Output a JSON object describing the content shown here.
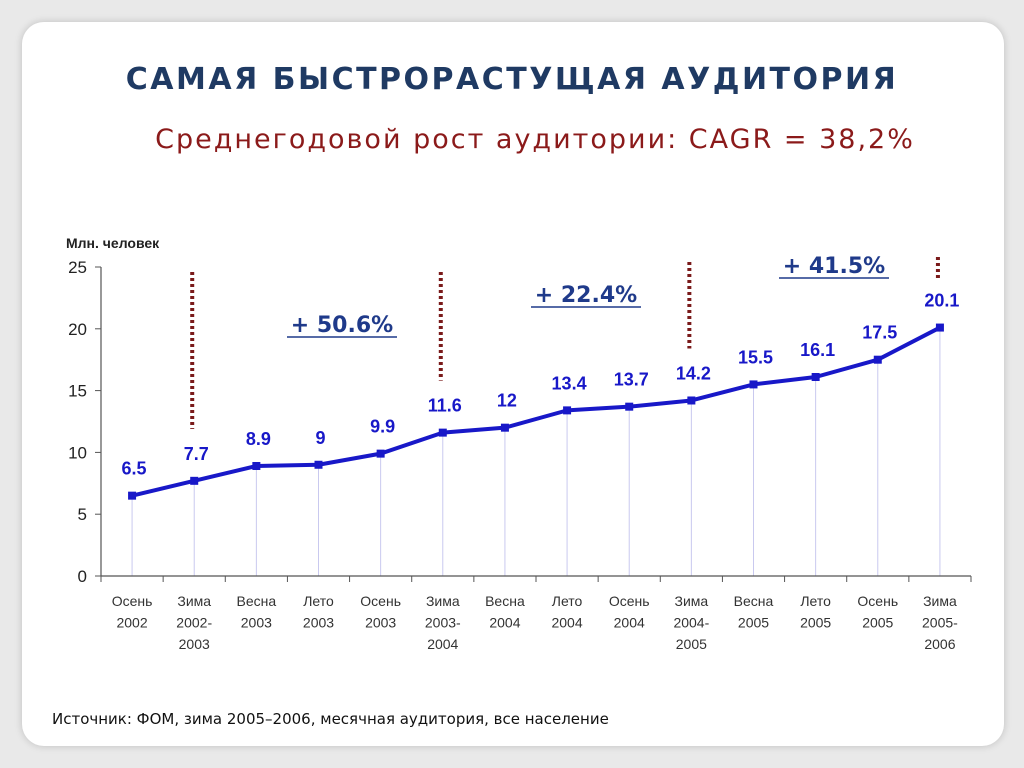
{
  "header": {
    "title": "САМАЯ БЫСТРОРАСТУЩАЯ АУДИТОРИЯ",
    "subtitle": "Среднегодовой рост аудитории: CAGR = 38,2%"
  },
  "footer": {
    "source": "Источник: ФОМ, зима 2005–2006, месячная аудитория, все население"
  },
  "chart_data": {
    "type": "line",
    "unit_label": "Млн. человек",
    "categories": [
      [
        "Осень",
        "2002"
      ],
      [
        "Зима",
        "2002-",
        "2003"
      ],
      [
        "Весна",
        "2003"
      ],
      [
        "Лето",
        "2003"
      ],
      [
        "Осень",
        "2003"
      ],
      [
        "Зима",
        "2003-",
        "2004"
      ],
      [
        "Весна",
        "2004"
      ],
      [
        "Лето",
        "2004"
      ],
      [
        "Осень",
        "2004"
      ],
      [
        "Зима",
        "2004-",
        "2005"
      ],
      [
        "Весна",
        "2005"
      ],
      [
        "Лето",
        "2005"
      ],
      [
        "Осень",
        "2005"
      ],
      [
        "Зима",
        "2005-",
        "2006"
      ]
    ],
    "values": [
      6.5,
      7.7,
      8.9,
      9,
      9.9,
      11.6,
      12,
      13.4,
      13.7,
      14.2,
      15.5,
      16.1,
      17.5,
      20.1
    ],
    "value_labels": [
      "6.5",
      "7.7",
      "8.9",
      "9",
      "9.9",
      "11.6",
      "12",
      "13.4",
      "13.7",
      "14.2",
      "15.5",
      "16.1",
      "17.5",
      "20.1"
    ],
    "ylim": [
      0,
      25
    ],
    "yticks": [
      0,
      5,
      10,
      15,
      20,
      25
    ],
    "line_color": "#1818c8",
    "year_dividers": [
      1,
      5,
      9,
      13
    ],
    "divider_color": "#7a1a1a",
    "growth_annotations": [
      {
        "text": "+ 50.6%",
        "between": [
          1,
          5
        ]
      },
      {
        "text": "+ 22.4%",
        "between": [
          5,
          9
        ]
      },
      {
        "text": "+ 41.5%",
        "between": [
          9,
          13
        ]
      }
    ]
  }
}
